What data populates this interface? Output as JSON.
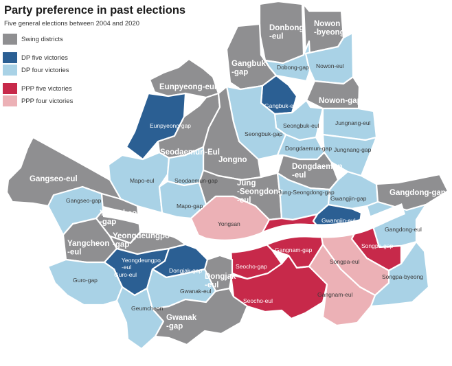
{
  "title": "Party preference in past elections",
  "subtitle": "Five general elections between 2004 and 2020",
  "colors": {
    "swing": "#8f8f91",
    "dp5": "#2b5f93",
    "dp4": "#a9d2e6",
    "ppp5": "#c7294a",
    "ppp4": "#ecb1b6"
  },
  "legend": [
    {
      "key": "swing",
      "label": "Swing districts"
    },
    {
      "key": "dp5",
      "label": "DP five victories"
    },
    {
      "key": "dp4",
      "label": "DP four victories"
    },
    {
      "key": "ppp5",
      "label": "PPP five victories"
    },
    {
      "key": "ppp4",
      "label": "PPP four victories"
    }
  ],
  "districts": [
    {
      "id": "donbong-eul",
      "lines": [
        "Donbong",
        "-eul"
      ],
      "cat": "swing"
    },
    {
      "id": "nowon-byeong",
      "lines": [
        "Nowon",
        "-byeong"
      ],
      "cat": "swing"
    },
    {
      "id": "dobong-gap",
      "lines": [
        "Dobong-gap"
      ],
      "cat": "dp4"
    },
    {
      "id": "nowon-eul",
      "lines": [
        "Nowon-eul"
      ],
      "cat": "dp4"
    },
    {
      "id": "gangbuk-gap",
      "lines": [
        "Gangbuk",
        "-gap"
      ],
      "cat": "swing"
    },
    {
      "id": "nowon-gap",
      "lines": [
        "Nowon-gap"
      ],
      "cat": "swing"
    },
    {
      "id": "gangbuk-eul",
      "lines": [
        "Gangbuk-eul"
      ],
      "cat": "dp5"
    },
    {
      "id": "eunpyeong-eul",
      "lines": [
        "Eunpyeong-eul"
      ],
      "cat": "swing"
    },
    {
      "id": "eunpyeong-gap",
      "lines": [
        "Eunpyeong-gap"
      ],
      "cat": "dp5"
    },
    {
      "id": "seongbuk-eul",
      "lines": [
        "Seongbuk-eul"
      ],
      "cat": "dp4"
    },
    {
      "id": "jungnang-eul",
      "lines": [
        "Jungnang-eul"
      ],
      "cat": "dp4"
    },
    {
      "id": "seongbuk-gap",
      "lines": [
        "Seongbuk-gap"
      ],
      "cat": "dp4"
    },
    {
      "id": "jungnang-gap",
      "lines": [
        "Jungnang-gap"
      ],
      "cat": "dp4"
    },
    {
      "id": "seodaemun-eul",
      "lines": [
        "Seodaemun-Eul"
      ],
      "cat": "swing"
    },
    {
      "id": "dongdaemun-gap",
      "lines": [
        "Dongdaemun-gap"
      ],
      "cat": "dp4"
    },
    {
      "id": "jongno",
      "lines": [
        "Jongno"
      ],
      "cat": "swing"
    },
    {
      "id": "dongdaemun-eul",
      "lines": [
        "Dongdaemun",
        "-eul"
      ],
      "cat": "swing"
    },
    {
      "id": "gangseo-eul",
      "lines": [
        "Gangseo-eul"
      ],
      "cat": "swing"
    },
    {
      "id": "mapo-eul",
      "lines": [
        "Mapo-eul"
      ],
      "cat": "dp4"
    },
    {
      "id": "seodaemun-gap",
      "lines": [
        "Seodaemun-gap"
      ],
      "cat": "dp4"
    },
    {
      "id": "jung-seongdong-eul",
      "lines": [
        "Jung",
        "-Seongdong",
        "-eul"
      ],
      "cat": "swing"
    },
    {
      "id": "jung-seongdong-gap",
      "lines": [
        "Jung-Seongdong-gap"
      ],
      "cat": "dp4"
    },
    {
      "id": "gwangjin-gap",
      "lines": [
        "Gwangjin-gap"
      ],
      "cat": "dp4"
    },
    {
      "id": "gangdong-gap",
      "lines": [
        "Gangdong-gap"
      ],
      "cat": "swing"
    },
    {
      "id": "gangseo-gap",
      "lines": [
        "Gangseo-gap"
      ],
      "cat": "dp4"
    },
    {
      "id": "mapo-gap",
      "lines": [
        "Mapo-gap"
      ],
      "cat": "dp4"
    },
    {
      "id": "yangcheon-gap",
      "lines": [
        "Yangcheon",
        "-gap"
      ],
      "cat": "swing"
    },
    {
      "id": "yongsan",
      "lines": [
        "Yongsan"
      ],
      "cat": "ppp4"
    },
    {
      "id": "gwangjin-eul",
      "lines": [
        "Gwangjin-eul"
      ],
      "cat": "dp5"
    },
    {
      "id": "gangdong-eul",
      "lines": [
        "Gangdong-eul"
      ],
      "cat": "dp4"
    },
    {
      "id": "yeongdeungpo-gap",
      "lines": [
        "Yeongdeungpo",
        "-gap"
      ],
      "cat": "swing"
    },
    {
      "id": "yangcheon-eul",
      "lines": [
        "Yangcheon",
        "-eul"
      ],
      "cat": "swing"
    },
    {
      "id": "songpa-gap",
      "lines": [
        "Songpa-gap"
      ],
      "cat": "ppp5"
    },
    {
      "id": "gangnam-gap",
      "lines": [
        "Gangnam-gap"
      ],
      "cat": "ppp5"
    },
    {
      "id": "seocho-gap",
      "lines": [
        "Seocho-gap"
      ],
      "cat": "ppp5"
    },
    {
      "id": "songpa-eul",
      "lines": [
        "Songpa-eul"
      ],
      "cat": "ppp4"
    },
    {
      "id": "yeongdeungpo-eul",
      "lines": [
        "Yeongdeungpo",
        "-eul"
      ],
      "cat": "dp5"
    },
    {
      "id": "guro-eul",
      "lines": [
        "Guro-eul"
      ],
      "cat": "dp5"
    },
    {
      "id": "dongjak-gap",
      "lines": [
        "Dongjak-gap"
      ],
      "cat": "dp5"
    },
    {
      "id": "dongjak-eul",
      "lines": [
        "Dongjak",
        "-eul"
      ],
      "cat": "swing"
    },
    {
      "id": "guro-gap",
      "lines": [
        "Guro-gap"
      ],
      "cat": "dp4"
    },
    {
      "id": "songpa-byeong",
      "lines": [
        "Songpa-byeong"
      ],
      "cat": "dp4"
    },
    {
      "id": "gwanak-eul",
      "lines": [
        "Gwanak-eul"
      ],
      "cat": "dp4"
    },
    {
      "id": "seocho-eul",
      "lines": [
        "Seocho-eul"
      ],
      "cat": "ppp5"
    },
    {
      "id": "gangnam-eul",
      "lines": [
        "Gangnam-eul"
      ],
      "cat": "ppp4"
    },
    {
      "id": "geumcheon",
      "lines": [
        "Geumcheon"
      ],
      "cat": "dp4"
    },
    {
      "id": "gwanak-gap",
      "lines": [
        "Gwanak",
        "-gap"
      ],
      "cat": "swing"
    }
  ]
}
